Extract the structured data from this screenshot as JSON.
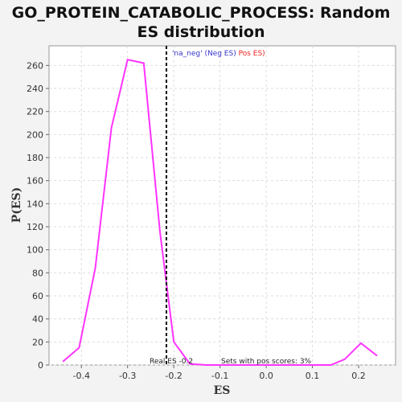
{
  "chart_data": {
    "type": "line",
    "title_line1": "GO_PROTEIN_CATABOLIC_PROCESS: Random",
    "title_line2": "ES distribution",
    "xlabel": "ES",
    "ylabel": "P(ES)",
    "xlim": [
      -0.47,
      0.28
    ],
    "ylim": [
      0,
      277
    ],
    "xticks": [
      -0.4,
      -0.3,
      -0.2,
      -0.1,
      0.0,
      0.1,
      0.2
    ],
    "xtick_labels": [
      "-0.4",
      "-0.3",
      "-0.2",
      "-0.1",
      "0.0",
      "0.1",
      "0.2"
    ],
    "yticks": [
      0,
      20,
      40,
      60,
      80,
      100,
      120,
      140,
      160,
      180,
      200,
      220,
      240,
      260
    ],
    "ytick_labels": [
      "0",
      "20",
      "40",
      "60",
      "80",
      "100",
      "120",
      "140",
      "160",
      "180",
      "200",
      "220",
      "240",
      "260"
    ],
    "grid": true,
    "series": [
      {
        "color": "#ff33ff",
        "x": [
          -0.44,
          -0.405,
          -0.37,
          -0.335,
          -0.3,
          -0.265,
          -0.23,
          -0.2,
          -0.165,
          -0.13,
          -0.095,
          -0.06,
          -0.025,
          0.01,
          0.045,
          0.08,
          0.11,
          0.14,
          0.17,
          0.205,
          0.24
        ],
        "y": [
          3,
          15,
          84,
          206,
          265,
          262,
          116,
          20,
          1,
          0,
          0,
          0,
          0,
          0,
          0,
          0,
          0,
          0,
          5,
          19,
          8
        ]
      }
    ],
    "real_es": -0.216,
    "real_es_color": "#000000",
    "legend": [
      {
        "text": "'na_neg'",
        "color": "#3333cc"
      },
      {
        "text": "(Neg ES)",
        "color": "#3333cc"
      },
      {
        "text": "Pos ES)",
        "color": "#ee2222"
      }
    ],
    "annotations": {
      "real_es_label": "Real ES -0.2",
      "pos_scores_label": "Sets with pos scores: 3%"
    }
  }
}
